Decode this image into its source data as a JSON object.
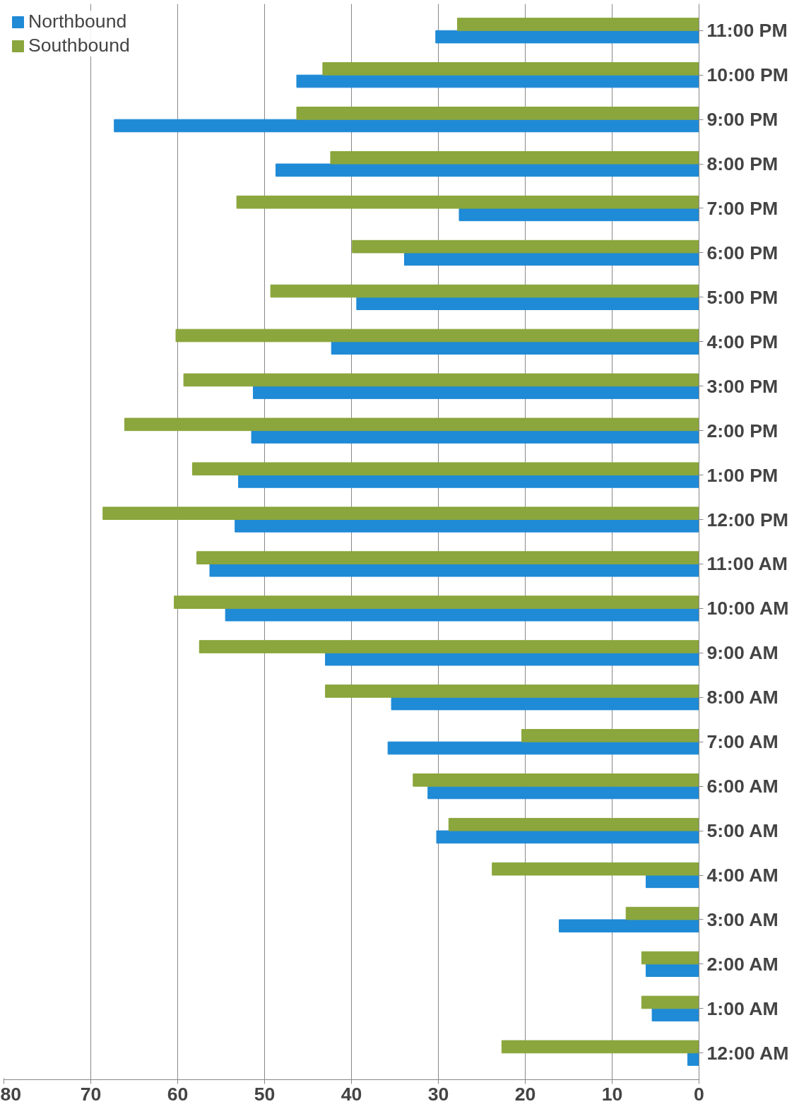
{
  "chart_data": {
    "type": "bar",
    "orientation": "horizontal",
    "categories": [
      "11:00 PM",
      "10:00 PM",
      "9:00 PM",
      "8:00 PM",
      "7:00 PM",
      "6:00 PM",
      "5:00 PM",
      "4:00 PM",
      "3:00 PM",
      "2:00 PM",
      "1:00 PM",
      "12:00 PM",
      "11:00 AM",
      "10:00 AM",
      "9:00 AM",
      "8:00 AM",
      "7:00 AM",
      "6:00 AM",
      "5:00 AM",
      "4:00 AM",
      "3:00 AM",
      "2:00 AM",
      "1:00 AM",
      "12:00 AM"
    ],
    "series": [
      {
        "name": "Northbound",
        "color": "#1f8ad6",
        "values": [
          30.3,
          46.3,
          67.3,
          48.7,
          27.6,
          33.9,
          39.4,
          42.3,
          51.3,
          51.5,
          53,
          53.4,
          56.3,
          54.5,
          43,
          35.4,
          35.8,
          31.2,
          30.2,
          6.1,
          16.1,
          6.1,
          5.4,
          1.3
        ]
      },
      {
        "name": "Southbound",
        "color": "#8aa63c",
        "values": [
          27.8,
          43.3,
          46.3,
          42.4,
          53.2,
          39.9,
          49.3,
          60.2,
          59.3,
          66.1,
          58.3,
          68.6,
          57.8,
          60.4,
          57.5,
          43,
          20.4,
          32.9,
          28.8,
          23.8,
          8.4,
          6.6,
          6.6,
          22.7
        ]
      }
    ],
    "xlim": [
      80,
      0
    ],
    "xticks": [
      0,
      10,
      20,
      30,
      40,
      50,
      60,
      70,
      80
    ],
    "grid": "x",
    "legend": "top left"
  }
}
